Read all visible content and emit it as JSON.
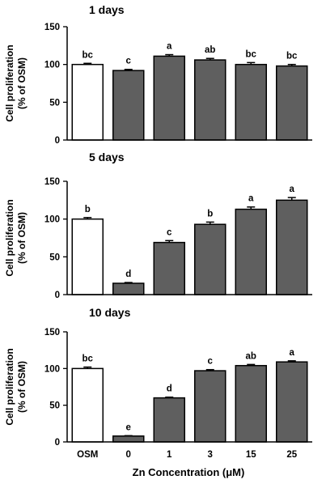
{
  "figure": {
    "xlabel": "Zn Concentration (μM)",
    "categories": [
      "OSM",
      "0",
      "1",
      "3",
      "15",
      "25"
    ]
  },
  "chart_data": [
    {
      "type": "bar",
      "title": "1 days",
      "ylabel": [
        "Cell proliferation",
        "(% of OSM)"
      ],
      "ylim": [
        0,
        150
      ],
      "yticks": [
        "0",
        "50",
        "100",
        "150"
      ],
      "categories": [
        "OSM",
        "0",
        "1",
        "3",
        "15",
        "25"
      ],
      "values": [
        100,
        92,
        111,
        106,
        100,
        98
      ],
      "errors": [
        1.5,
        1.5,
        2,
        2,
        2.5,
        2
      ],
      "letters": [
        "bc",
        "c",
        "a",
        "ab",
        "bc",
        "bc"
      ],
      "colors": [
        "#ffffff",
        "#5f5f5f",
        "#5f5f5f",
        "#5f5f5f",
        "#5f5f5f",
        "#5f5f5f"
      ]
    },
    {
      "type": "bar",
      "title": "5 days",
      "ylabel": [
        "Cell proliferation",
        "(% of OSM)"
      ],
      "ylim": [
        0,
        150
      ],
      "yticks": [
        "0",
        "50",
        "100",
        "150"
      ],
      "categories": [
        "OSM",
        "0",
        "1",
        "3",
        "15",
        "25"
      ],
      "values": [
        100,
        15,
        69,
        93,
        113,
        125
      ],
      "errors": [
        2,
        1,
        2.5,
        3,
        3,
        3.5
      ],
      "letters": [
        "b",
        "d",
        "c",
        "b",
        "a",
        "a"
      ],
      "colors": [
        "#ffffff",
        "#5f5f5f",
        "#5f5f5f",
        "#5f5f5f",
        "#5f5f5f",
        "#5f5f5f"
      ]
    },
    {
      "type": "bar",
      "title": "10 days",
      "ylabel": [
        "Cell proliferation",
        "(% of OSM)"
      ],
      "ylim": [
        0,
        150
      ],
      "yticks": [
        "0",
        "50",
        "100",
        "150"
      ],
      "categories": [
        "OSM",
        "0",
        "1",
        "3",
        "15",
        "25"
      ],
      "values": [
        100,
        8,
        60,
        97,
        104,
        109
      ],
      "errors": [
        2,
        0.5,
        1,
        1.5,
        1.5,
        1.5
      ],
      "letters": [
        "bc",
        "e",
        "d",
        "c",
        "ab",
        "a"
      ],
      "colors": [
        "#ffffff",
        "#5f5f5f",
        "#5f5f5f",
        "#5f5f5f",
        "#5f5f5f",
        "#5f5f5f"
      ]
    }
  ]
}
